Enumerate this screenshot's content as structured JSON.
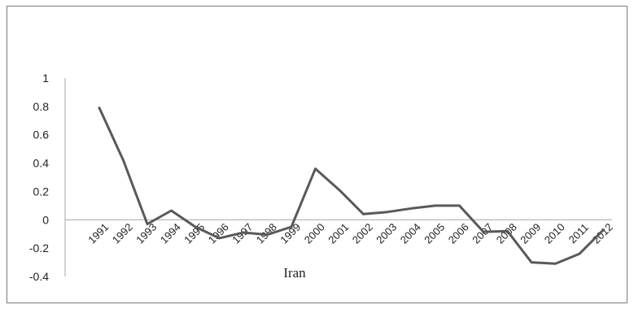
{
  "chart_data": {
    "type": "line",
    "title": "",
    "xlabel": "Iran",
    "ylabel": "",
    "categories": [
      "1991",
      "1992",
      "1993",
      "1994",
      "1995",
      "1996",
      "1997",
      "1998",
      "1999",
      "2000",
      "2001",
      "2002",
      "2003",
      "2004",
      "2005",
      "2006",
      "2007",
      "2008",
      "2009",
      "2010",
      "2011",
      "2012"
    ],
    "series": [
      {
        "values": [
          0.79,
          0.42,
          -0.03,
          0.065,
          -0.05,
          -0.13,
          -0.09,
          -0.105,
          -0.05,
          0.36,
          0.21,
          0.04,
          0.055,
          0.08,
          0.1,
          0.1,
          -0.085,
          -0.08,
          -0.3,
          -0.31,
          -0.24,
          -0.07
        ]
      }
    ],
    "ylim": [
      -0.4,
      1
    ],
    "yticks": [
      1,
      0.8,
      0.6,
      0.4,
      0.2,
      0,
      -0.2,
      -0.4
    ],
    "yticklabels": [
      "1",
      "0.8",
      "0.6",
      "0.4",
      "0.2",
      "0",
      "-0.2",
      "-0.4"
    ],
    "grid": false,
    "legend": "none",
    "colors": {
      "line": "#595959",
      "axis": "#a6a6a6"
    }
  }
}
